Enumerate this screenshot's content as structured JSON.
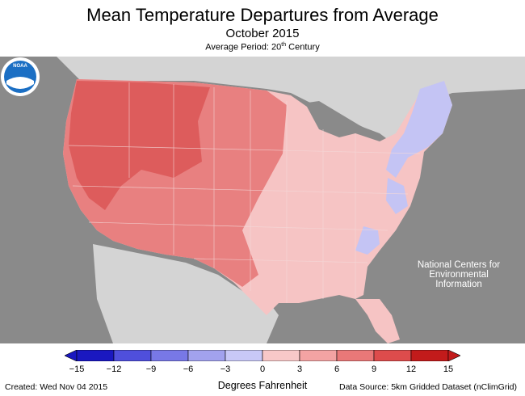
{
  "header": {
    "title": "Mean Temperature Departures from Average",
    "subtitle": "October 2015",
    "period_prefix": "Average Period: 20",
    "period_sup": "th",
    "period_suffix": " Century"
  },
  "logo": {
    "text_line1": "National Centers for",
    "text_line2": "Environmental",
    "text_line3": "Information",
    "logo_text": "NOAA"
  },
  "legend": {
    "ticks": [
      "−15",
      "−12",
      "−9",
      "−6",
      "−3",
      "0",
      "3",
      "6",
      "9",
      "12",
      "15"
    ],
    "unit": "Degrees Fahrenheit",
    "colors": [
      "#1a18c0",
      "#4f4fdc",
      "#7878e6",
      "#a2a2ee",
      "#c8c8f7",
      "#f8c8c8",
      "#f3a3a3",
      "#e97878",
      "#dd4c4c",
      "#c21b1b"
    ]
  },
  "footer": {
    "created": "Created: Wed Nov 04 2015",
    "source": "Data Source: 5km Gridded Dataset (nClimGrid)"
  },
  "map_colors": {
    "ocean": "#8a8a8a",
    "land_other": "#d4d4d4",
    "warm_strong": "#dd5c5c",
    "warm_medium": "#e88080",
    "warm_light": "#f1a7a7",
    "warm_faint": "#f6c4c4",
    "cool": "#c4c4f4",
    "cool_medium": "#a6a6ee"
  }
}
